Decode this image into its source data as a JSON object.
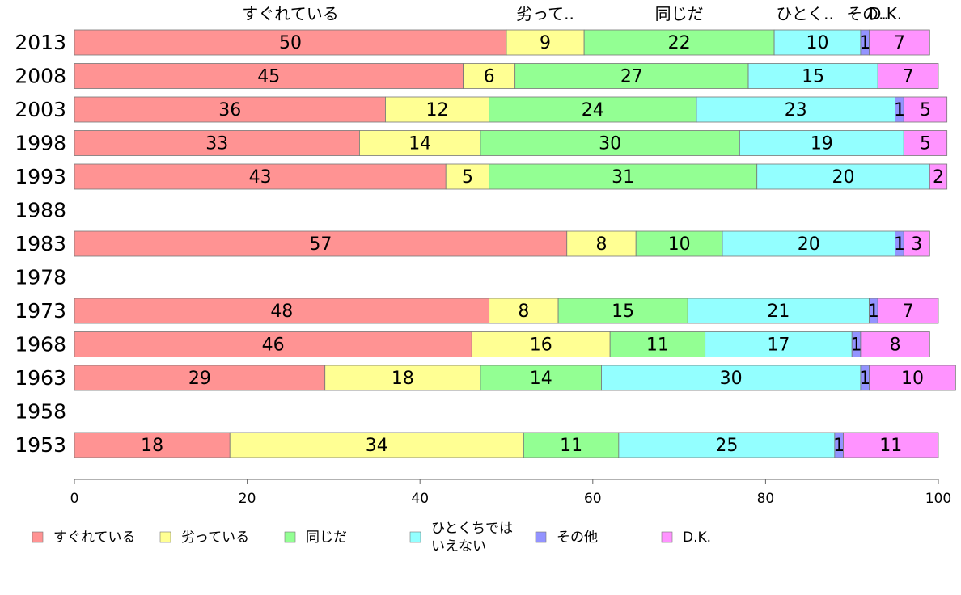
{
  "chart_data": {
    "type": "bar",
    "orientation": "horizontal",
    "stacked": true,
    "categories": [
      "2013",
      "2008",
      "2003",
      "1998",
      "1993",
      "1988",
      "1983",
      "1978",
      "1973",
      "1968",
      "1963",
      "1958",
      "1953"
    ],
    "series": [
      {
        "name": "すぐれている",
        "color": "#ff9393",
        "values": [
          50,
          45,
          36,
          33,
          43,
          null,
          57,
          null,
          48,
          46,
          29,
          null,
          18
        ]
      },
      {
        "name": "劣っている",
        "color": "#ffff93",
        "values": [
          9,
          6,
          12,
          14,
          5,
          null,
          8,
          null,
          8,
          16,
          18,
          null,
          34
        ]
      },
      {
        "name": "同じだ",
        "color": "#93ff93",
        "values": [
          22,
          27,
          24,
          30,
          31,
          null,
          10,
          null,
          15,
          11,
          14,
          null,
          11
        ]
      },
      {
        "name": "ひとくちでは いえない",
        "color": "#93ffff",
        "values": [
          10,
          15,
          23,
          19,
          20,
          null,
          20,
          null,
          21,
          17,
          30,
          null,
          25
        ]
      },
      {
        "name": "その他",
        "color": "#9393ff",
        "values": [
          1,
          0,
          1,
          0,
          0,
          null,
          1,
          null,
          1,
          1,
          1,
          null,
          1
        ]
      },
      {
        "name": "D.K.",
        "color": "#ff93ff",
        "values": [
          7,
          7,
          5,
          5,
          2,
          null,
          3,
          null,
          7,
          8,
          10,
          null,
          11
        ]
      }
    ],
    "top_labels": [
      "すぐれている",
      "劣って..",
      "同じだ",
      "ひとく..",
      "その..",
      "D.K."
    ],
    "xlim": [
      0,
      100
    ],
    "xticks": [
      0,
      20,
      40,
      60,
      80,
      100
    ],
    "grid": false,
    "legend": {
      "placement": "bottom",
      "items": [
        {
          "lines": [
            "すぐれている"
          ]
        },
        {
          "lines": [
            "劣っている"
          ]
        },
        {
          "lines": [
            "同じだ"
          ]
        },
        {
          "lines": [
            "ひとくちでは",
            "いえない"
          ]
        },
        {
          "lines": [
            "その他"
          ]
        },
        {
          "lines": [
            "D.K."
          ]
        }
      ]
    }
  }
}
